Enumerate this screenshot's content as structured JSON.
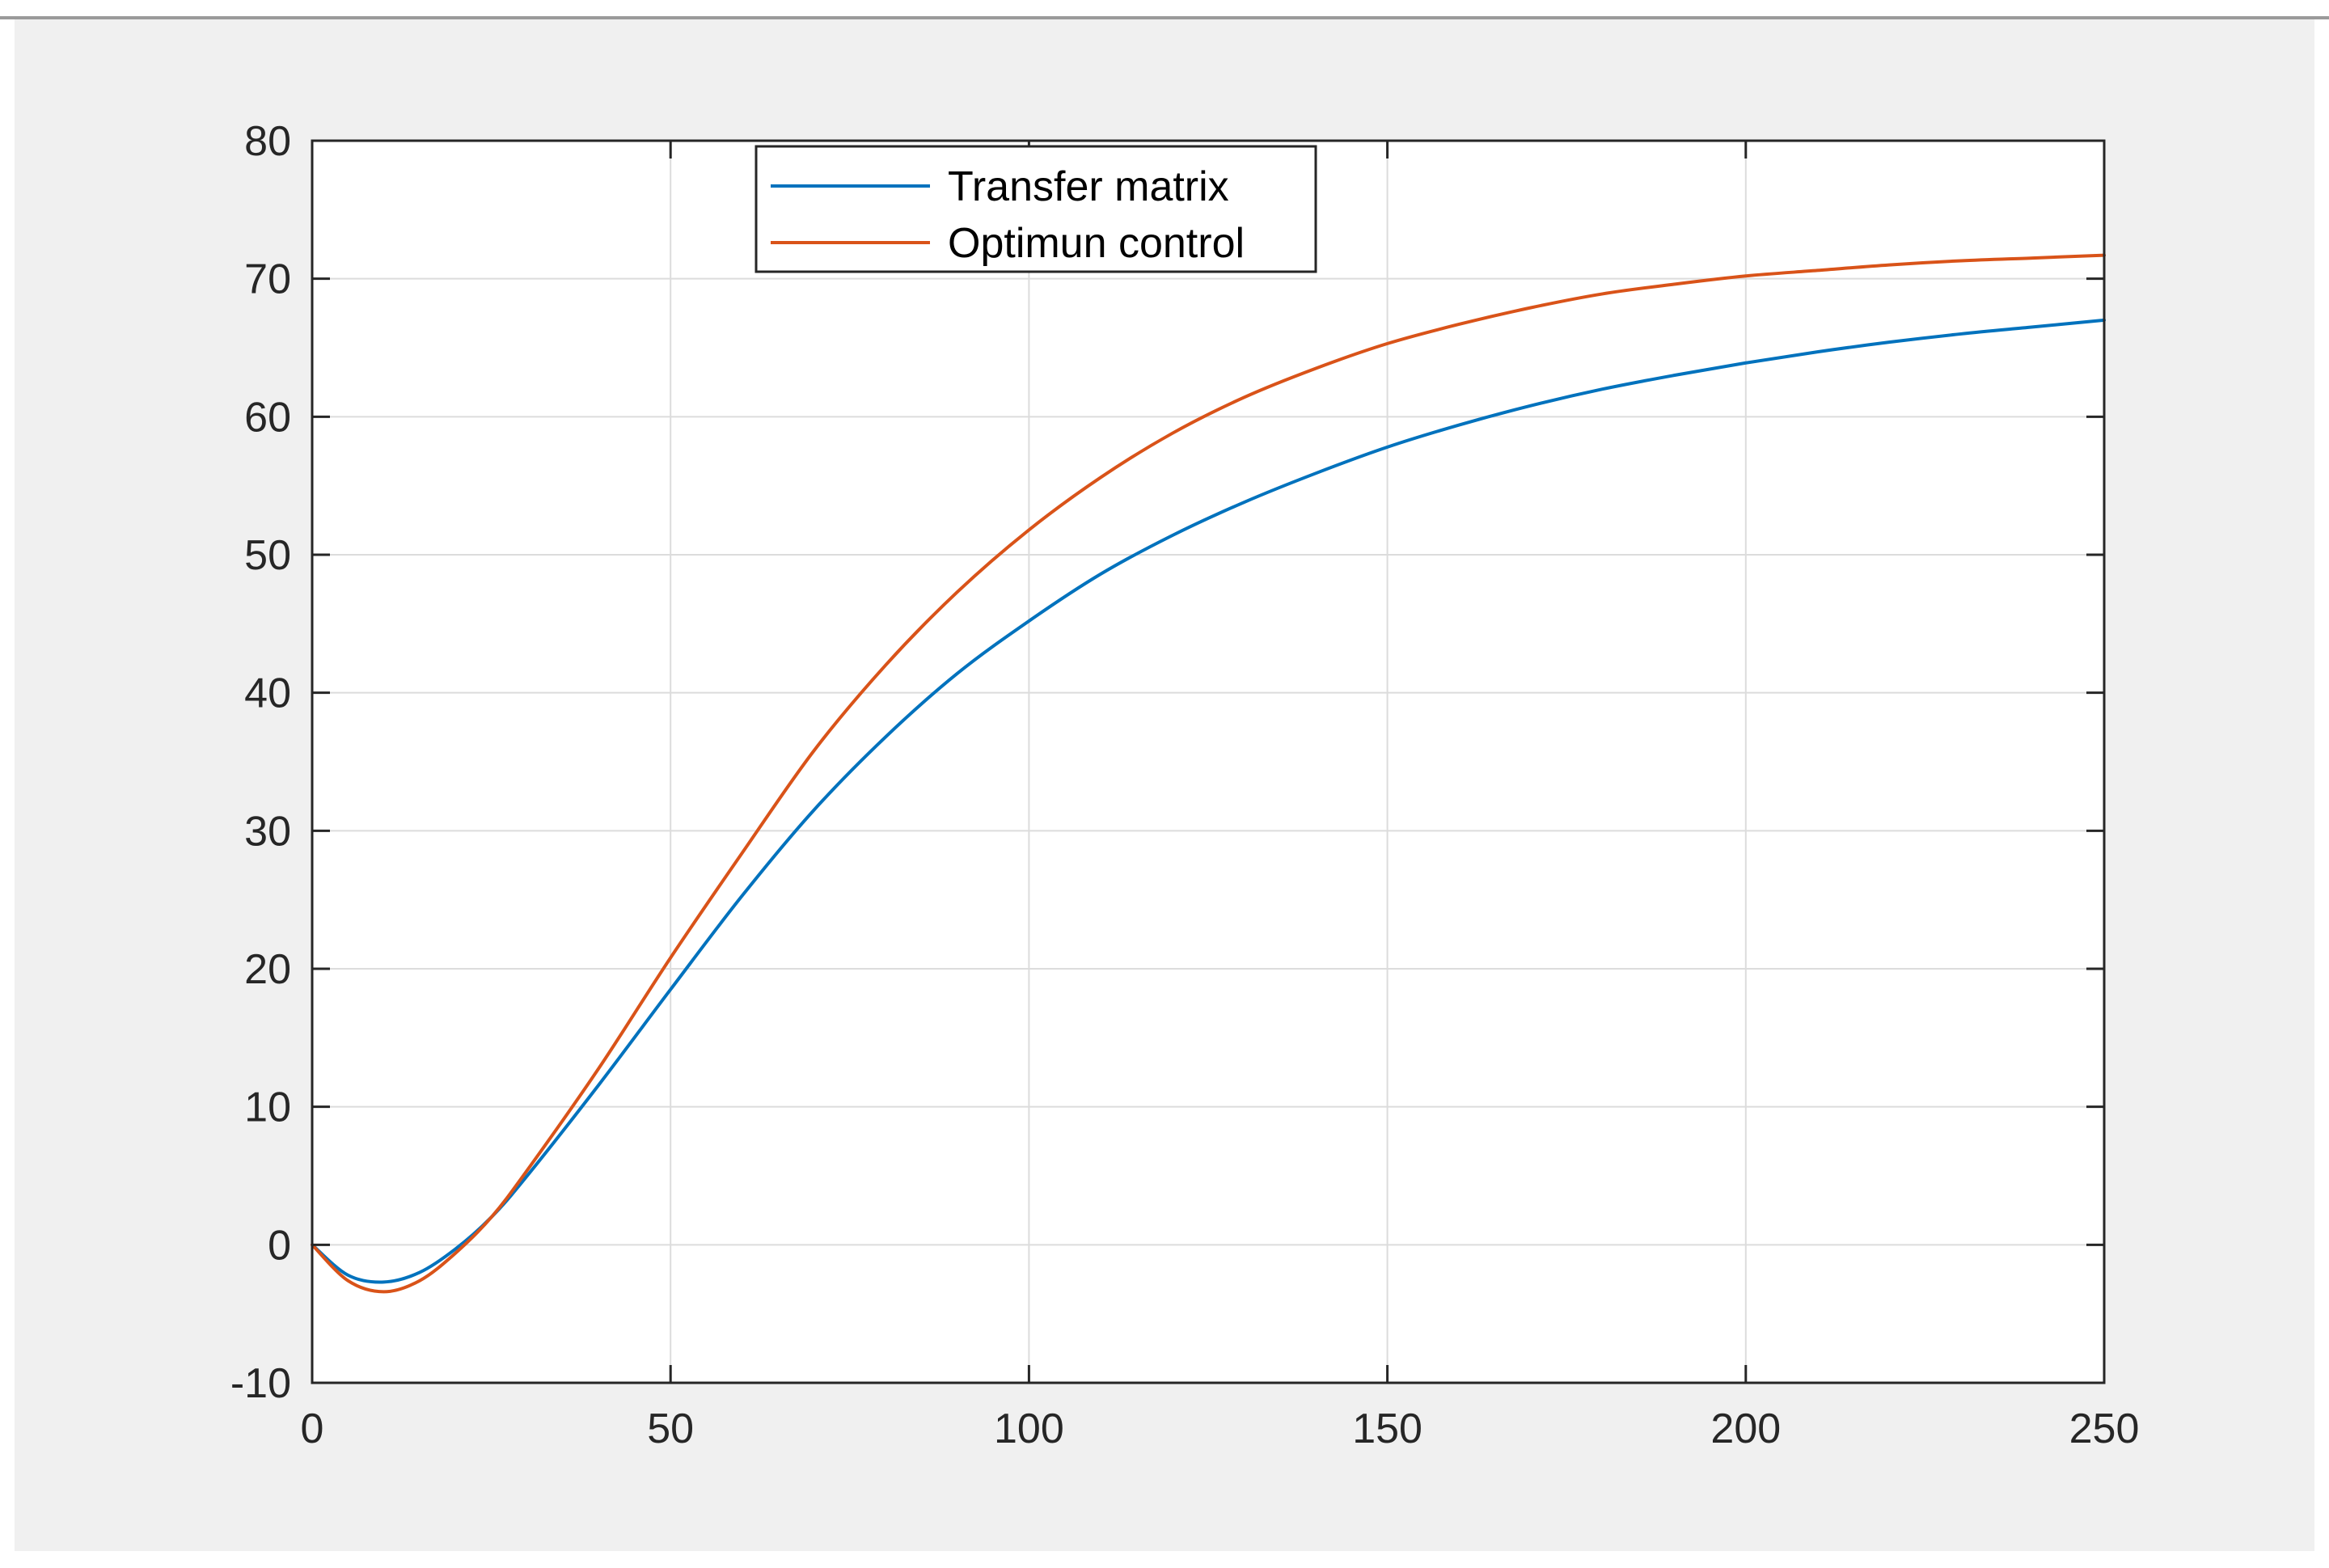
{
  "chart_data": {
    "type": "line",
    "title": "",
    "xlabel": "",
    "ylabel": "",
    "xlim": [
      0,
      250
    ],
    "ylim": [
      -10,
      80
    ],
    "xticks": [
      0,
      50,
      100,
      150,
      200,
      250
    ],
    "yticks": [
      -10,
      0,
      10,
      20,
      30,
      40,
      50,
      60,
      70,
      80
    ],
    "xtick_labels": [
      "0",
      "50",
      "100",
      "150",
      "200",
      "250"
    ],
    "ytick_labels": [
      "-10",
      "0",
      "10",
      "20",
      "30",
      "40",
      "50",
      "60",
      "70",
      "80"
    ],
    "grid": true,
    "legend_position": "top-center",
    "series": [
      {
        "name": "Transfer matrix",
        "color": "#0072BD",
        "x": [
          0,
          5,
          10,
          15,
          20,
          25,
          30,
          40,
          50,
          60,
          70,
          80,
          90,
          100,
          110,
          120,
          130,
          140,
          150,
          160,
          170,
          180,
          190,
          200,
          210,
          220,
          230,
          240,
          250
        ],
        "y": [
          0,
          -2.2,
          -2.7,
          -2.0,
          -0.3,
          2.0,
          5.0,
          11.6,
          18.5,
          25.3,
          31.5,
          36.8,
          41.4,
          45.2,
          48.6,
          51.4,
          53.8,
          55.9,
          57.8,
          59.4,
          60.8,
          62.0,
          63.0,
          63.9,
          64.7,
          65.4,
          66.0,
          66.5,
          67.0
        ]
      },
      {
        "name": "Optimun control",
        "color": "#D95319",
        "x": [
          0,
          5,
          10,
          15,
          20,
          25,
          30,
          40,
          50,
          60,
          70,
          80,
          90,
          100,
          110,
          120,
          130,
          140,
          150,
          160,
          170,
          180,
          190,
          200,
          210,
          220,
          230,
          240,
          250
        ],
        "y": [
          0,
          -2.6,
          -3.4,
          -2.6,
          -0.6,
          2.0,
          5.4,
          12.8,
          20.8,
          28.4,
          35.8,
          42.0,
          47.3,
          51.8,
          55.6,
          58.8,
          61.4,
          63.5,
          65.3,
          66.7,
          67.9,
          68.9,
          69.6,
          70.2,
          70.6,
          71.0,
          71.3,
          71.5,
          71.7
        ]
      }
    ]
  }
}
